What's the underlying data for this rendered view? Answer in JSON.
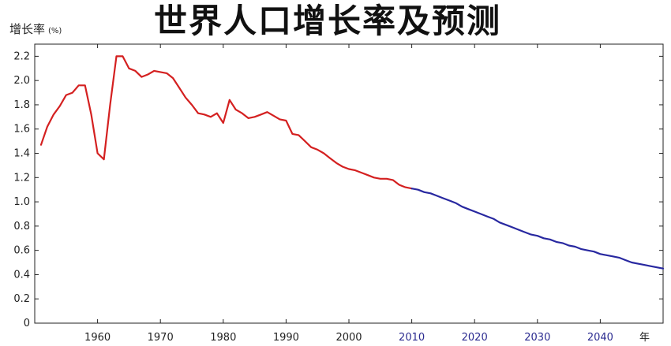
{
  "chart_data": {
    "type": "line",
    "title": "世界人口增长率及预测",
    "ylabel": "增长率",
    "ylabel_unit": "(%)",
    "xlabel": "年",
    "xlim": [
      1950,
      2050
    ],
    "ylim": [
      0,
      2.3
    ],
    "grid": false,
    "x_ticks": [
      1960,
      1970,
      1980,
      1990,
      2000,
      2010,
      2020,
      2030,
      2040
    ],
    "y_ticks": [
      0,
      0.2,
      0.4,
      0.6,
      0.8,
      1.0,
      1.2,
      1.4,
      1.6,
      1.8,
      2.0,
      2.2
    ],
    "y_tick_labels": [
      "0",
      "0.2",
      "0.4",
      "0.6",
      "0.8",
      "1.0",
      "1.2",
      "1.4",
      "1.6",
      "1.8",
      "2.0",
      "2.2"
    ],
    "series": [
      {
        "color": "#d42020",
        "x": [
          1951,
          1952,
          1953,
          1954,
          1955,
          1956,
          1957,
          1958,
          1959,
          1960,
          1961,
          1962,
          1963,
          1964,
          1965,
          1966,
          1967,
          1968,
          1969,
          1970,
          1971,
          1972,
          1973,
          1974,
          1975,
          1976,
          1977,
          1978,
          1979,
          1980,
          1981,
          1982,
          1983,
          1984,
          1985,
          1986,
          1987,
          1988,
          1989,
          1990,
          1991,
          1992,
          1993,
          1994,
          1995,
          1996,
          1997,
          1998,
          1999,
          2000,
          2001,
          2002,
          2003,
          2004,
          2005,
          2006,
          2007,
          2008,
          2009,
          2010
        ],
        "values": [
          1.47,
          1.62,
          1.72,
          1.79,
          1.88,
          1.9,
          1.96,
          1.96,
          1.72,
          1.4,
          1.35,
          1.8,
          2.2,
          2.2,
          2.1,
          2.08,
          2.03,
          2.05,
          2.08,
          2.07,
          2.06,
          2.02,
          1.94,
          1.86,
          1.8,
          1.73,
          1.72,
          1.7,
          1.73,
          1.65,
          1.84,
          1.76,
          1.73,
          1.69,
          1.7,
          1.72,
          1.74,
          1.71,
          1.68,
          1.67,
          1.56,
          1.55,
          1.5,
          1.45,
          1.43,
          1.4,
          1.36,
          1.32,
          1.29,
          1.27,
          1.26,
          1.24,
          1.22,
          1.2,
          1.19,
          1.19,
          1.18,
          1.14,
          1.12,
          1.11
        ]
      },
      {
        "color": "#2828a0",
        "x": [
          2010,
          2011,
          2012,
          2013,
          2014,
          2015,
          2016,
          2017,
          2018,
          2019,
          2020,
          2021,
          2022,
          2023,
          2024,
          2025,
          2026,
          2027,
          2028,
          2029,
          2030,
          2031,
          2032,
          2033,
          2034,
          2035,
          2036,
          2037,
          2038,
          2039,
          2040,
          2041,
          2042,
          2043,
          2044,
          2045,
          2046,
          2047,
          2048,
          2049,
          2050
        ],
        "values": [
          1.11,
          1.1,
          1.08,
          1.07,
          1.05,
          1.03,
          1.01,
          0.99,
          0.96,
          0.94,
          0.92,
          0.9,
          0.88,
          0.86,
          0.83,
          0.81,
          0.79,
          0.77,
          0.75,
          0.73,
          0.72,
          0.7,
          0.69,
          0.67,
          0.66,
          0.64,
          0.63,
          0.61,
          0.6,
          0.59,
          0.57,
          0.56,
          0.55,
          0.54,
          0.52,
          0.5,
          0.49,
          0.48,
          0.47,
          0.46,
          0.45
        ]
      }
    ],
    "x_tick_colors": {
      "historical": "#222222",
      "forecast": "#2b2b90"
    }
  }
}
